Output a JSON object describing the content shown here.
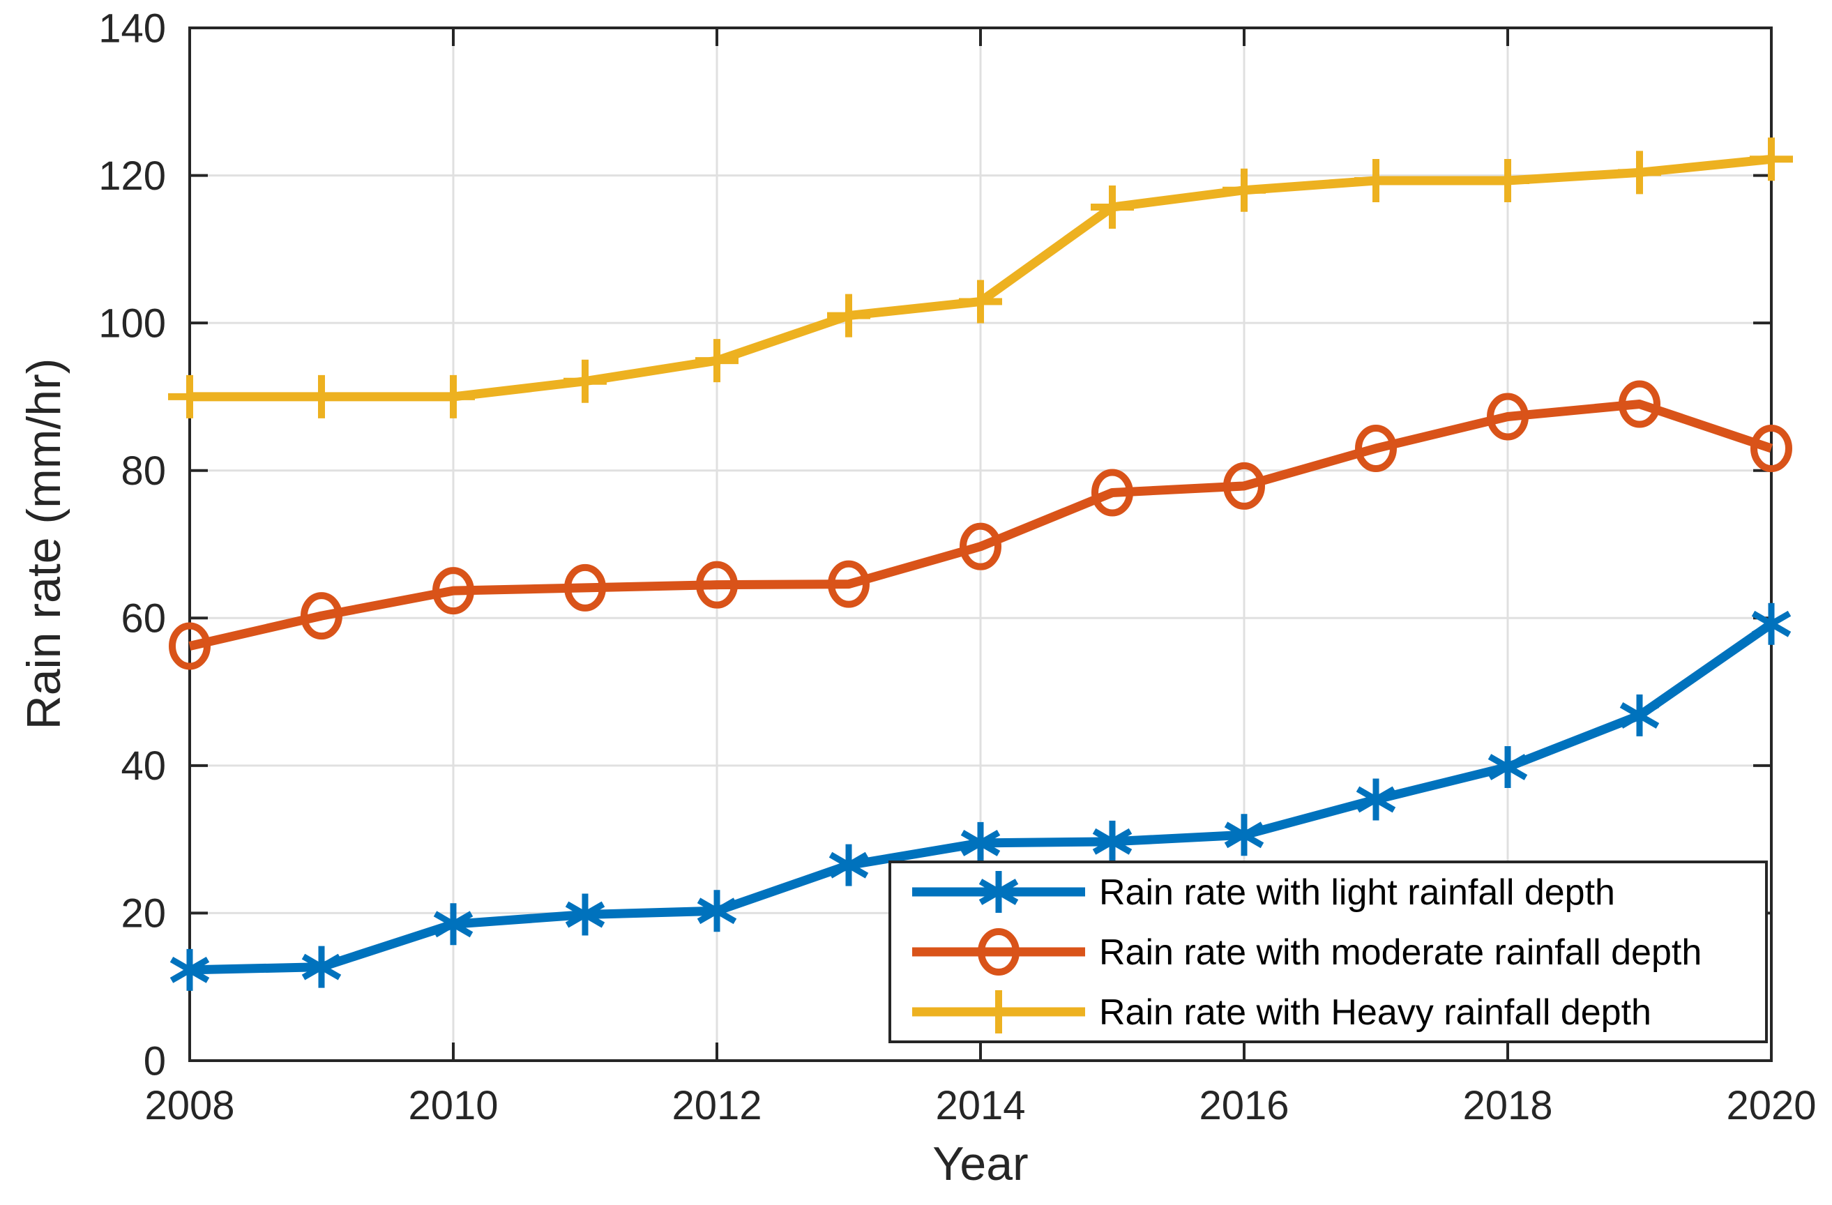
{
  "chart_data": {
    "type": "line",
    "title": "",
    "xlabel": "Year",
    "ylabel": "Rain rate (mm/hr)",
    "xlim": [
      2008,
      2020
    ],
    "ylim": [
      0,
      140
    ],
    "xticks": [
      2008,
      2010,
      2012,
      2014,
      2016,
      2018,
      2020
    ],
    "yticks": [
      0,
      20,
      40,
      60,
      80,
      100,
      120,
      140
    ],
    "grid": true,
    "legend_position": "inside-lower-right",
    "x": [
      2008,
      2009,
      2010,
      2011,
      2012,
      2013,
      2014,
      2015,
      2016,
      2017,
      2018,
      2019,
      2020
    ],
    "series": [
      {
        "name": "Rain rate with light rainfall depth",
        "color": "#0072BD",
        "marker": "asterisk",
        "values": [
          12.3,
          12.7,
          18.5,
          19.8,
          20.3,
          26.5,
          29.5,
          29.7,
          30.6,
          35.4,
          39.8,
          46.8,
          59.2
        ]
      },
      {
        "name": "Rain rate with moderate rainfall depth",
        "color": "#D95319",
        "marker": "circle",
        "values": [
          56.2,
          60.3,
          63.7,
          64.1,
          64.5,
          64.6,
          69.7,
          77.0,
          77.9,
          83.0,
          87.3,
          89.0,
          83.0
        ]
      },
      {
        "name": "Rain rate with Heavy rainfall depth",
        "color": "#EDB120",
        "marker": "plus",
        "values": [
          90.0,
          90.0,
          90.0,
          92.1,
          94.9,
          101.0,
          102.9,
          115.7,
          118.0,
          119.3,
          119.3,
          120.4,
          122.2
        ]
      }
    ],
    "axis_color": "#262626",
    "grid_color": "#E0E0E0",
    "background_color": "#FFFFFF",
    "legend_text_color": "#000000"
  }
}
